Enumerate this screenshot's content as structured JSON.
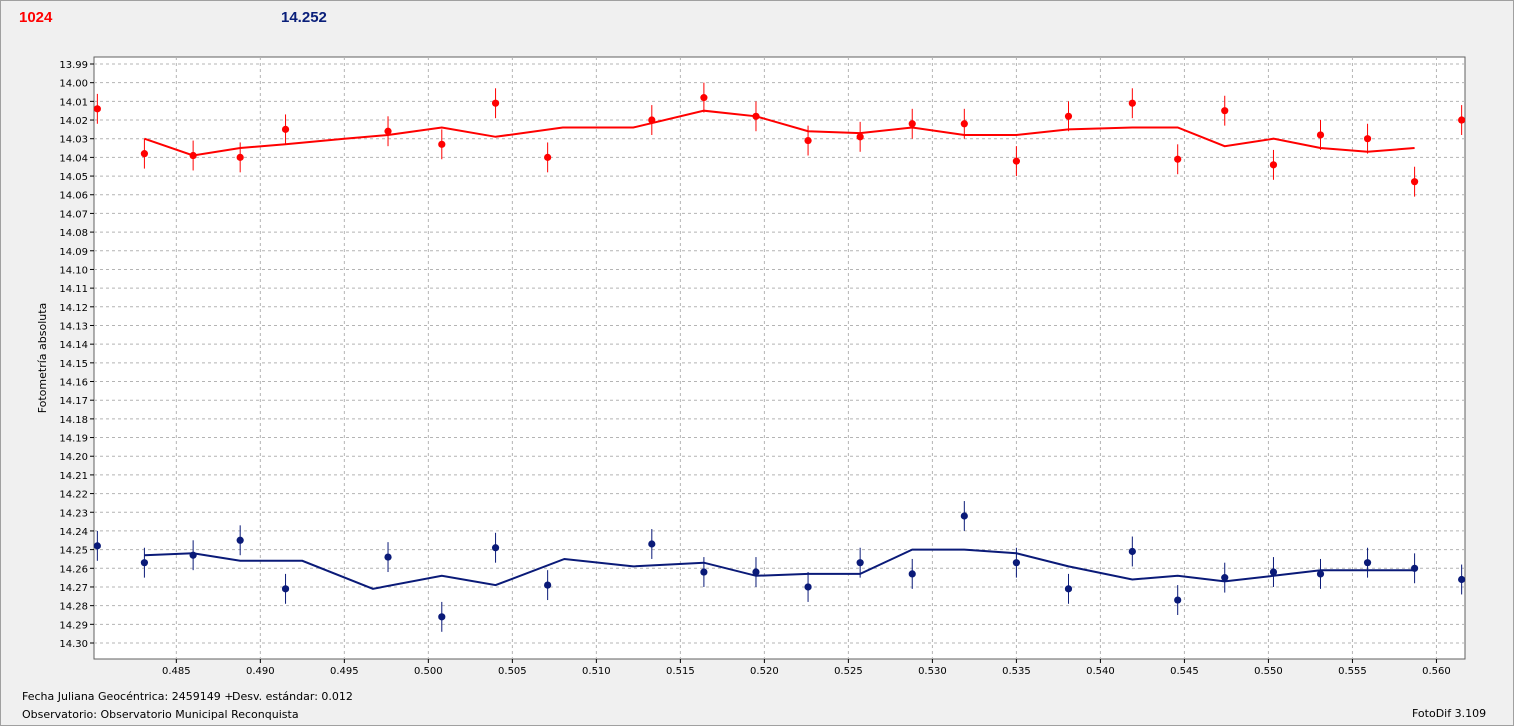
{
  "header": {
    "left_value": "1024",
    "right_value": "14.252"
  },
  "footer": {
    "fecha": "Fecha Juliana Geocéntrica: 2459149 +",
    "desv": "Desv. estándar: 0.012",
    "observador": "Observatorio: Observatorio Municipal Reconquista",
    "version": "FotoDif 3.109"
  },
  "colors": {
    "red_series": "#ff0000",
    "blue_series": "#0a1a78",
    "plot_bg": "#ffffff",
    "grid": "#b4b4b4"
  },
  "chart_data": {
    "type": "scatter",
    "title": "",
    "xlabel": "",
    "ylabel": "Fotometría absoluta",
    "xlim": [
      0.4801,
      0.5617
    ],
    "ylim": [
      13.99,
      14.31
    ],
    "y_inverted": true,
    "grid": true,
    "x_ticks": [
      "0.485",
      "0.490",
      "0.495",
      "0.500",
      "0.505",
      "0.510",
      "0.515",
      "0.520",
      "0.525",
      "0.530",
      "0.535",
      "0.540",
      "0.545",
      "0.550",
      "0.555",
      "0.560"
    ],
    "y_ticks": [
      "13.99",
      "14.00",
      "14.01",
      "14.02",
      "14.03",
      "14.04",
      "14.05",
      "14.06",
      "14.07",
      "14.08",
      "14.09",
      "14.10",
      "14.11",
      "14.12",
      "14.13",
      "14.14",
      "14.15",
      "14.16",
      "14.17",
      "14.18",
      "14.19",
      "14.20",
      "14.21",
      "14.22",
      "14.23",
      "14.24",
      "14.25",
      "14.26",
      "14.27",
      "14.28",
      "14.29",
      "14.30"
    ],
    "series": [
      {
        "color": "#ff0000",
        "points": [
          {
            "x": 0.4803,
            "y": 14.014,
            "err": 0.006
          },
          {
            "x": 0.4831,
            "y": 14.038,
            "err": 0.006
          },
          {
            "x": 0.486,
            "y": 14.039,
            "err": 0.006
          },
          {
            "x": 0.4888,
            "y": 14.04,
            "err": 0.006
          },
          {
            "x": 0.4915,
            "y": 14.025,
            "err": 0.006
          },
          {
            "x": 0.4976,
            "y": 14.026,
            "err": 0.006
          },
          {
            "x": 0.5008,
            "y": 14.033,
            "err": 0.006
          },
          {
            "x": 0.504,
            "y": 14.011,
            "err": 0.006
          },
          {
            "x": 0.5071,
            "y": 14.04,
            "err": 0.006
          },
          {
            "x": 0.5133,
            "y": 14.02,
            "err": 0.006
          },
          {
            "x": 0.5164,
            "y": 14.008,
            "err": 0.006
          },
          {
            "x": 0.5195,
            "y": 14.018,
            "err": 0.006
          },
          {
            "x": 0.5226,
            "y": 14.031,
            "err": 0.006
          },
          {
            "x": 0.5257,
            "y": 14.029,
            "err": 0.006
          },
          {
            "x": 0.5288,
            "y": 14.022,
            "err": 0.006
          },
          {
            "x": 0.5319,
            "y": 14.022,
            "err": 0.006
          },
          {
            "x": 0.535,
            "y": 14.042,
            "err": 0.006
          },
          {
            "x": 0.5381,
            "y": 14.018,
            "err": 0.006
          },
          {
            "x": 0.5419,
            "y": 14.011,
            "err": 0.006
          },
          {
            "x": 0.5446,
            "y": 14.041,
            "err": 0.006
          },
          {
            "x": 0.5474,
            "y": 14.015,
            "err": 0.006
          },
          {
            "x": 0.5503,
            "y": 14.044,
            "err": 0.006
          },
          {
            "x": 0.5531,
            "y": 14.028,
            "err": 0.006
          },
          {
            "x": 0.5559,
            "y": 14.03,
            "err": 0.006
          },
          {
            "x": 0.5587,
            "y": 14.053,
            "err": 0.006
          },
          {
            "x": 0.5615,
            "y": 14.02,
            "err": 0.006
          }
        ],
        "fit": {
          "x": [
            0.4831,
            0.486,
            0.4888,
            0.4915,
            0.495,
            0.4976,
            0.5008,
            0.504,
            0.508,
            0.5122,
            0.5164,
            0.5195,
            0.5226,
            0.5257,
            0.5288,
            0.5319,
            0.535,
            0.5381,
            0.5419,
            0.5446,
            0.5474,
            0.5503,
            0.5531,
            0.5559,
            0.5587
          ],
          "y": [
            14.03,
            14.039,
            14.035,
            14.033,
            14.03,
            14.028,
            14.024,
            14.029,
            14.024,
            14.024,
            14.015,
            14.018,
            14.026,
            14.027,
            14.024,
            14.028,
            14.028,
            14.025,
            14.024,
            14.024,
            14.034,
            14.03,
            14.035,
            14.037,
            14.035
          ]
        }
      },
      {
        "color": "#0a1a78",
        "points": [
          {
            "x": 0.4803,
            "y": 14.248,
            "err": 0.006
          },
          {
            "x": 0.4831,
            "y": 14.257,
            "err": 0.006
          },
          {
            "x": 0.486,
            "y": 14.253,
            "err": 0.006
          },
          {
            "x": 0.4888,
            "y": 14.245,
            "err": 0.006
          },
          {
            "x": 0.4915,
            "y": 14.271,
            "err": 0.006
          },
          {
            "x": 0.4976,
            "y": 14.254,
            "err": 0.006
          },
          {
            "x": 0.5008,
            "y": 14.286,
            "err": 0.006
          },
          {
            "x": 0.504,
            "y": 14.249,
            "err": 0.006
          },
          {
            "x": 0.5071,
            "y": 14.269,
            "err": 0.006
          },
          {
            "x": 0.5133,
            "y": 14.247,
            "err": 0.006
          },
          {
            "x": 0.5164,
            "y": 14.262,
            "err": 0.006
          },
          {
            "x": 0.5195,
            "y": 14.262,
            "err": 0.006
          },
          {
            "x": 0.5226,
            "y": 14.27,
            "err": 0.006
          },
          {
            "x": 0.5257,
            "y": 14.257,
            "err": 0.006
          },
          {
            "x": 0.5288,
            "y": 14.263,
            "err": 0.006
          },
          {
            "x": 0.5319,
            "y": 14.232,
            "err": 0.006
          },
          {
            "x": 0.535,
            "y": 14.257,
            "err": 0.006
          },
          {
            "x": 0.5381,
            "y": 14.271,
            "err": 0.006
          },
          {
            "x": 0.5419,
            "y": 14.251,
            "err": 0.006
          },
          {
            "x": 0.5446,
            "y": 14.277,
            "err": 0.006
          },
          {
            "x": 0.5474,
            "y": 14.265,
            "err": 0.006
          },
          {
            "x": 0.5503,
            "y": 14.262,
            "err": 0.006
          },
          {
            "x": 0.5531,
            "y": 14.263,
            "err": 0.006
          },
          {
            "x": 0.5559,
            "y": 14.257,
            "err": 0.006
          },
          {
            "x": 0.5587,
            "y": 14.26,
            "err": 0.006
          },
          {
            "x": 0.5615,
            "y": 14.266,
            "err": 0.006
          }
        ],
        "fit": {
          "x": [
            0.4831,
            0.486,
            0.4888,
            0.4925,
            0.4967,
            0.5008,
            0.504,
            0.5081,
            0.5122,
            0.5164,
            0.5195,
            0.5226,
            0.5257,
            0.5288,
            0.5319,
            0.535,
            0.5381,
            0.5419,
            0.5446,
            0.5474,
            0.5503,
            0.5531,
            0.5559,
            0.5587
          ],
          "y": [
            14.253,
            14.252,
            14.256,
            14.256,
            14.271,
            14.264,
            14.269,
            14.255,
            14.259,
            14.257,
            14.264,
            14.263,
            14.263,
            14.25,
            14.25,
            14.252,
            14.259,
            14.266,
            14.264,
            14.267,
            14.264,
            14.261,
            14.261,
            14.261
          ]
        }
      }
    ]
  }
}
